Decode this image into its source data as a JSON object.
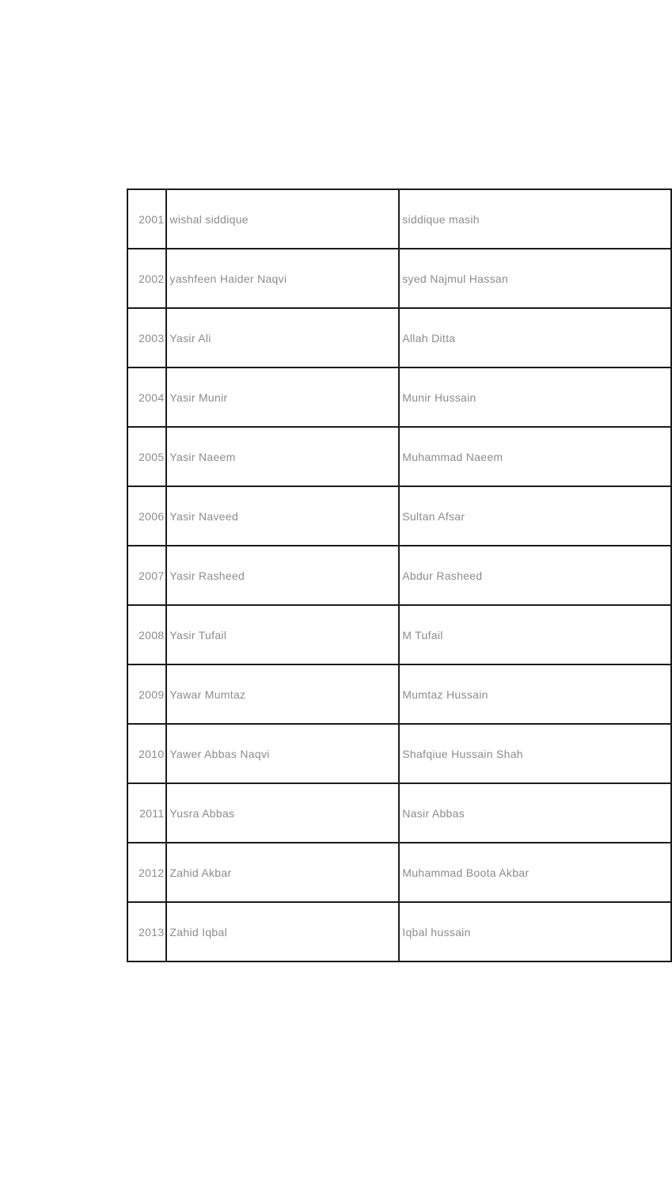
{
  "page": {
    "background_color": "#ffffff"
  },
  "table": {
    "border_color": "#1c1c1c",
    "text_color": "#8c8c8c",
    "columns": [
      "serial_no",
      "name",
      "father_name"
    ],
    "rows": [
      {
        "no": "2001",
        "name": "wishal siddique",
        "father_name": "siddique masih"
      },
      {
        "no": "2002",
        "name": "yashfeen Haider Naqvi",
        "father_name": "syed Najmul Hassan"
      },
      {
        "no": "2003",
        "name": "Yasir Ali",
        "father_name": "Allah Ditta"
      },
      {
        "no": "2004",
        "name": "Yasir Munir",
        "father_name": "Munir Hussain"
      },
      {
        "no": "2005",
        "name": "Yasir Naeem",
        "father_name": "Muhammad Naeem"
      },
      {
        "no": "2006",
        "name": "Yasir Naveed",
        "father_name": "Sultan Afsar"
      },
      {
        "no": "2007",
        "name": "Yasir Rasheed",
        "father_name": "Abdur Rasheed"
      },
      {
        "no": "2008",
        "name": "Yasir Tufail",
        "father_name": "M Tufail"
      },
      {
        "no": "2009",
        "name": "Yawar Mumtaz",
        "father_name": "Mumtaz Hussain"
      },
      {
        "no": "2010",
        "name": "Yawer Abbas Naqvi",
        "father_name": "Shafqiue Hussain Shah"
      },
      {
        "no": "2011",
        "name": "Yusra Abbas",
        "father_name": "Nasir Abbas"
      },
      {
        "no": "2012",
        "name": "Zahid Akbar",
        "father_name": "Muhammad Boota Akbar"
      },
      {
        "no": "2013",
        "name": "Zahid Iqbal",
        "father_name": "Iqbal hussain"
      }
    ]
  }
}
